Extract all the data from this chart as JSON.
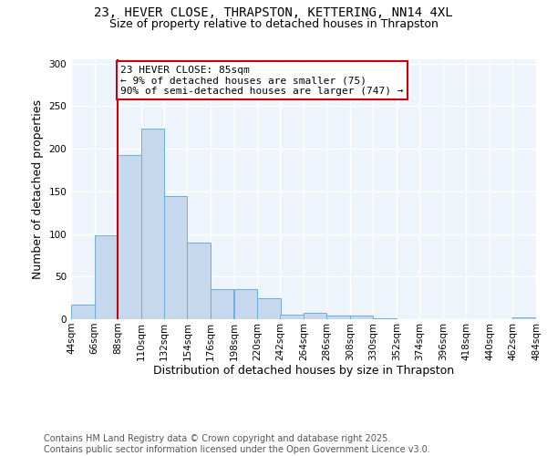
{
  "title_line1": "23, HEVER CLOSE, THRAPSTON, KETTERING, NN14 4XL",
  "title_line2": "Size of property relative to detached houses in Thrapston",
  "xlabel": "Distribution of detached houses by size in Thrapston",
  "ylabel": "Number of detached properties",
  "bar_values": [
    17,
    98,
    193,
    224,
    145,
    90,
    35,
    35,
    25,
    5,
    7,
    4,
    4,
    1,
    0,
    0,
    0,
    0,
    0,
    2
  ],
  "bin_edges": [
    44,
    66,
    88,
    110,
    132,
    154,
    176,
    198,
    220,
    242,
    264,
    286,
    308,
    330,
    352,
    374,
    396,
    418,
    440,
    462,
    484
  ],
  "tick_labels": [
    "44sqm",
    "66sqm",
    "88sqm",
    "110sqm",
    "132sqm",
    "154sqm",
    "176sqm",
    "198sqm",
    "220sqm",
    "242sqm",
    "264sqm",
    "286sqm",
    "308sqm",
    "330sqm",
    "352sqm",
    "374sqm",
    "396sqm",
    "418sqm",
    "440sqm",
    "462sqm",
    "484sqm"
  ],
  "bar_color": "#c5d8ee",
  "bar_edge_color": "#6aaee0",
  "vline_x": 88,
  "vline_color": "#cc0000",
  "annotation_text": "23 HEVER CLOSE: 85sqm\n← 9% of detached houses are smaller (75)\n90% of semi-detached houses are larger (747) →",
  "ylim": [
    0,
    305
  ],
  "yticks": [
    0,
    50,
    100,
    150,
    200,
    250,
    300
  ],
  "plot_background": "#eef4fb",
  "grid_color": "#ffffff",
  "footer_text": "Contains HM Land Registry data © Crown copyright and database right 2025.\nContains public sector information licensed under the Open Government Licence v3.0.",
  "title_fontsize": 10,
  "subtitle_fontsize": 9,
  "axis_label_fontsize": 9,
  "tick_fontsize": 7.5,
  "footer_fontsize": 7,
  "annotation_fontsize": 8
}
